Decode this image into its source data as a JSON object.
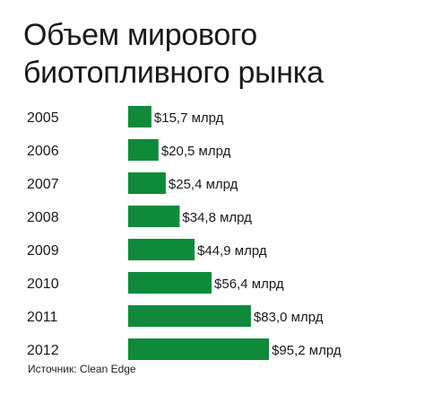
{
  "chart_data": {
    "type": "bar",
    "orientation": "horizontal",
    "title": "Объем мирового биотопливного рынка",
    "title_lines": [
      "Объем мирового",
      "биотопливного рынка"
    ],
    "categories": [
      "2005",
      "2006",
      "2007",
      "2008",
      "2009",
      "2010",
      "2011",
      "2012"
    ],
    "values": [
      15.7,
      20.5,
      25.4,
      34.8,
      44.9,
      56.4,
      83.0,
      95.2
    ],
    "data_labels": [
      "$15,7 млрд",
      "$20,5 млрд",
      "$25,4 млрд",
      "$34,8 млрд",
      "$44,9 млрд",
      "$56,4 млрд",
      "$83,0 млрд",
      "$95,2 млрд"
    ],
    "unit": "млрд $",
    "xlabel": "",
    "ylabel": "",
    "grid": false,
    "legend": "none",
    "bar_color": "#0f8a3b",
    "source": "Источник: Clean Edge"
  }
}
